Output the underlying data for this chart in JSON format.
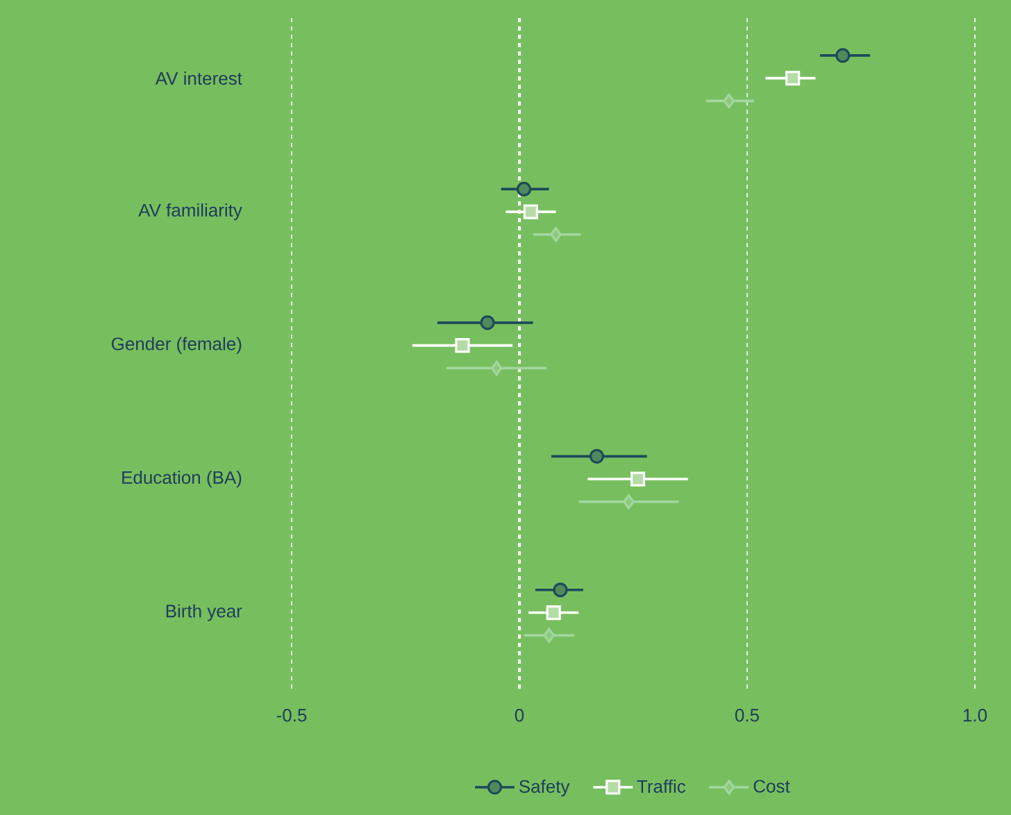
{
  "chart_data": {
    "type": "scatter",
    "orientation": "horizontal",
    "categories": [
      "AV interest",
      "AV familiarity",
      "Gender (female)",
      "Education (BA)",
      "Birth year"
    ],
    "series": [
      {
        "name": "Safety",
        "color": "#1d4a5a",
        "marker": "circle",
        "values": [
          0.71,
          0.01,
          -0.07,
          0.17,
          0.09
        ],
        "errors": [
          [
            0.66,
            0.77
          ],
          [
            -0.04,
            0.065
          ],
          [
            -0.18,
            0.03
          ],
          [
            0.07,
            0.28
          ],
          [
            0.035,
            0.14
          ]
        ]
      },
      {
        "name": "Traffic",
        "color": "#ffffff",
        "marker": "square",
        "values": [
          0.6,
          0.025,
          -0.125,
          0.26,
          0.075
        ],
        "errors": [
          [
            0.54,
            0.65
          ],
          [
            -0.03,
            0.08
          ],
          [
            -0.235,
            -0.015
          ],
          [
            0.15,
            0.37
          ],
          [
            0.02,
            0.13
          ]
        ]
      },
      {
        "name": "Cost",
        "color": "#a3d6a0",
        "marker": "diamond",
        "values": [
          0.46,
          0.08,
          -0.05,
          0.24,
          0.065
        ],
        "errors": [
          [
            0.41,
            0.515
          ],
          [
            0.03,
            0.135
          ],
          [
            -0.16,
            0.06
          ],
          [
            0.13,
            0.35
          ],
          [
            0.01,
            0.12
          ]
        ]
      }
    ],
    "xlim": [
      -0.5,
      1.0
    ],
    "xticks": [
      {
        "value": -0.5,
        "label": "-0.5"
      },
      {
        "value": 0,
        "label": "0"
      },
      {
        "value": 0.5,
        "label": "0.5"
      },
      {
        "value": 1.0,
        "label": "1.0"
      }
    ],
    "ref_lines": [
      {
        "axis": "x",
        "value": 0,
        "color": "#ffffff",
        "line_style": "dashed"
      }
    ],
    "grid": "x",
    "legend": "bottom"
  }
}
